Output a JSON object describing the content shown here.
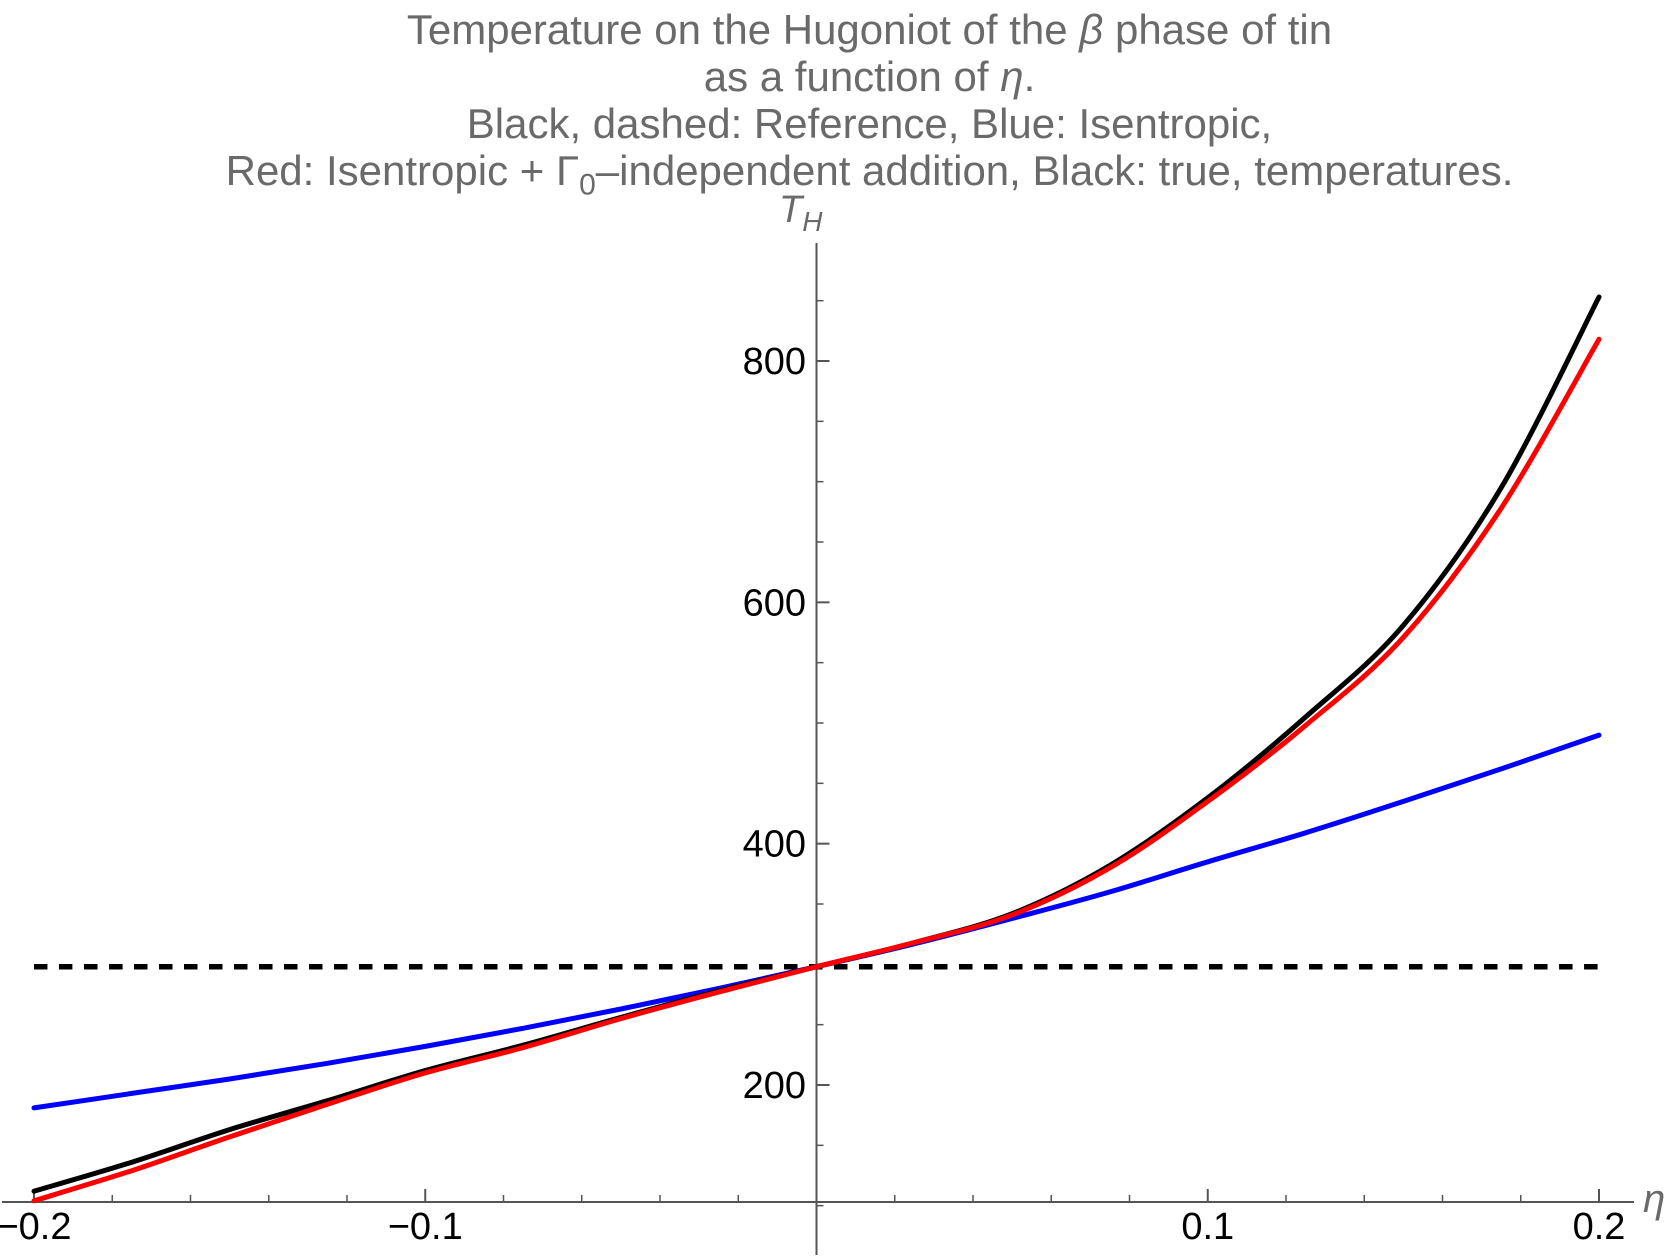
{
  "title": {
    "line1": {
      "pre": "Temperature on the Hugoniot of the ",
      "italic": "β",
      "post": " phase of tin"
    },
    "line2": {
      "pre": "as a function of ",
      "italic": "η",
      "post": "."
    },
    "line3": "Black, dashed: Reference, Blue: Isentropic,",
    "line4": {
      "pre": "Red: Isentropic + Γ",
      "sub": "0",
      "post": "–independent addition, Black: true, temperatures."
    }
  },
  "axes": {
    "y_label": {
      "main": "T",
      "sub": "H"
    },
    "x_label": "η",
    "x_ticks": [
      {
        "v": -0.2,
        "label": "−0.2"
      },
      {
        "v": -0.1,
        "label": "−0.1"
      },
      {
        "v": 0.1,
        "label": "0.1"
      },
      {
        "v": 0.2,
        "label": "0.2"
      }
    ],
    "y_ticks": [
      {
        "v": 200,
        "label": "200"
      },
      {
        "v": 400,
        "label": "400"
      },
      {
        "v": 600,
        "label": "600"
      },
      {
        "v": 800,
        "label": "800"
      }
    ],
    "x_minor_step": 0.02,
    "y_minor_step": 50,
    "y_minor_min": 100,
    "y_minor_max": 850,
    "axis_color": "#555555",
    "tick_label_color": "#000000",
    "label_color": "#6a6a6a"
  },
  "chart_data": {
    "type": "line",
    "title": "Temperature on the Hugoniot of the β phase of tin as a function of η.",
    "xlabel": "η",
    "ylabel": "T_H",
    "xlim": [
      -0.207,
      0.207
    ],
    "ylim": [
      57,
      900
    ],
    "grid": false,
    "legend_position": "none (described in title)",
    "x": [
      -0.2,
      -0.175,
      -0.15,
      -0.125,
      -0.1,
      -0.075,
      -0.05,
      -0.025,
      0,
      0.025,
      0.05,
      0.075,
      0.1,
      0.125,
      0.15,
      0.175,
      0.2
    ],
    "series": [
      {
        "name": "Reference (room temperature)",
        "color": "#000000",
        "style": "dashed",
        "values": [
          298,
          298,
          298,
          298,
          298,
          298,
          298,
          298,
          298,
          298,
          298,
          298,
          298,
          298,
          298,
          298,
          298
        ]
      },
      {
        "name": "Isentropic",
        "color": "#0000ff",
        "style": "solid",
        "values": [
          181,
          193,
          205,
          218,
          232,
          247,
          263,
          280,
          298,
          317,
          338,
          360,
          385,
          409,
          435,
          462,
          490
        ]
      },
      {
        "name": "True temperatures",
        "color": "#000000",
        "style": "solid",
        "values": [
          112,
          136,
          163,
          187,
          212,
          233,
          256,
          278,
          298,
          318,
          342,
          382,
          438,
          505,
          581,
          695,
          853
        ]
      },
      {
        "name": "Isentropic + Γ0-independent addition",
        "color": "#ff0000",
        "style": "solid",
        "values": [
          104,
          129,
          157,
          184,
          210,
          231,
          255,
          277,
          298,
          318,
          341,
          380,
          435,
          498,
          571,
          678,
          818
        ]
      }
    ]
  }
}
